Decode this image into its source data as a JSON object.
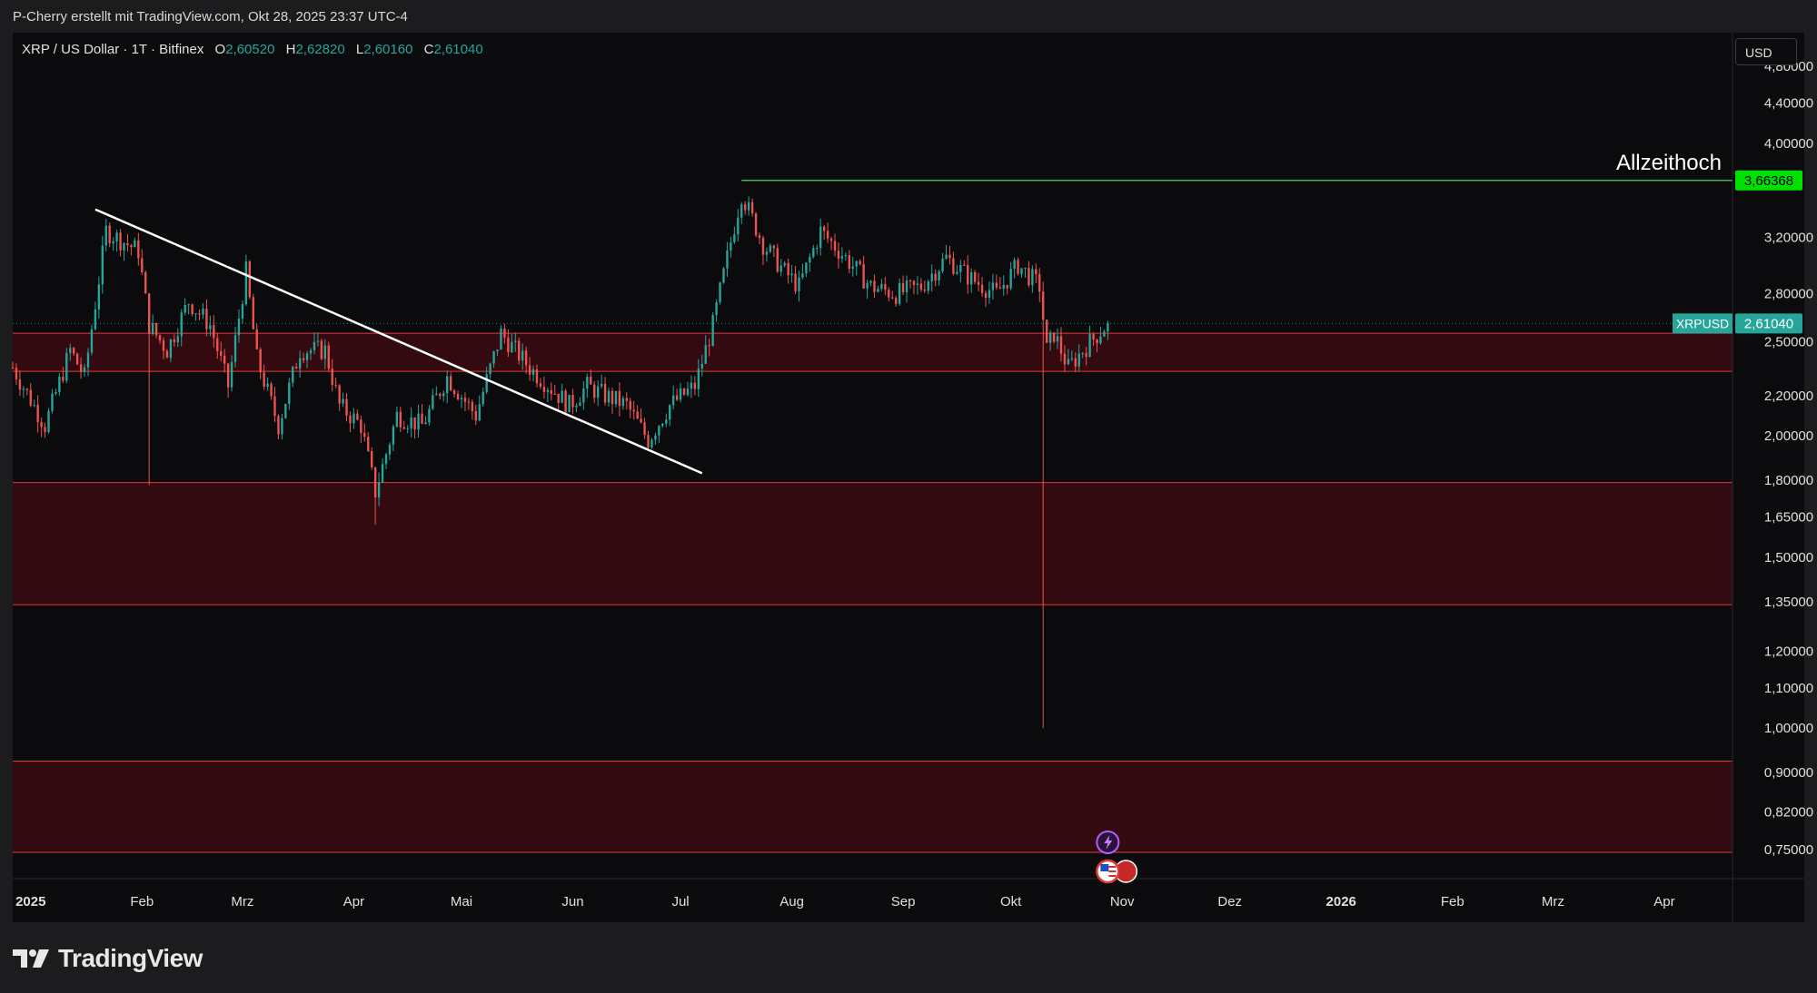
{
  "header": {
    "caption": "P-Cherry erstellt mit TradingView.com, Okt 28, 2025 23:37 UTC-4"
  },
  "legend": {
    "symbol": "XRP / US Dollar · 1T · Bitfinex",
    "o_label": "O",
    "o": "2,60520",
    "h_label": "H",
    "h": "2,62820",
    "l_label": "L",
    "l": "2,60160",
    "c_label": "C",
    "c": "2,61040"
  },
  "currency_button": "USD",
  "brand": "TradingView",
  "colors": {
    "background": "#0b0b0e",
    "up": "#26a69a",
    "down": "#ef5350",
    "zone_fill": "#3a0a10",
    "zone_border": "#e53935",
    "ath_line": "#4caf50",
    "trendline": "#ffffff"
  },
  "icon_names": [
    "lightning-event-icon",
    "us-flag-event-icon",
    "tradingview-logo-icon"
  ],
  "chart_data": {
    "type": "candlestick",
    "title": "XRP / US Dollar · 1T · Bitfinex",
    "scale": "log",
    "ylim": [
      0.7,
      5.2
    ],
    "y_ticks": [
      "4,80000",
      "4,40000",
      "4,00000",
      "3,20000",
      "2,80000",
      "2,50000",
      "2,20000",
      "2,00000",
      "1,80000",
      "1,65000",
      "1,50000",
      "1,35000",
      "1,20000",
      "1,10000",
      "1,00000",
      "0,90000",
      "0,82000",
      "0,75000"
    ],
    "y_tick_values": [
      4.8,
      4.4,
      4.0,
      3.2,
      2.8,
      2.5,
      2.2,
      2.0,
      1.8,
      1.65,
      1.5,
      1.35,
      1.2,
      1.1,
      1.0,
      0.9,
      0.82,
      0.75
    ],
    "x_ticks": [
      "2025",
      "Feb",
      "Mrz",
      "Apr",
      "Mai",
      "Jun",
      "Jul",
      "Aug",
      "Sep",
      "Okt",
      "Nov",
      "Dez",
      "2026",
      "Feb",
      "Mrz",
      "Apr"
    ],
    "x_tick_dates": [
      "2025-01-01",
      "2025-02-01",
      "2025-03-01",
      "2025-04-01",
      "2025-05-01",
      "2025-06-01",
      "2025-07-01",
      "2025-08-01",
      "2025-09-01",
      "2025-10-01",
      "2025-11-01",
      "2025-12-01",
      "2026-01-01",
      "2026-02-01",
      "2026-03-01",
      "2026-04-01"
    ],
    "x_range": [
      "2024-12-27",
      "2026-04-20"
    ],
    "anchors": [
      [
        "2024-12-27",
        2.35
      ],
      [
        "2025-01-05",
        2.05
      ],
      [
        "2025-01-12",
        2.45
      ],
      [
        "2025-01-16",
        2.3
      ],
      [
        "2025-01-22",
        3.25
      ],
      [
        "2025-01-31",
        3.1
      ],
      [
        "2025-02-03",
        2.6
      ],
      [
        "2025-02-08",
        2.45
      ],
      [
        "2025-02-14",
        2.75
      ],
      [
        "2025-02-20",
        2.6
      ],
      [
        "2025-02-25",
        2.25
      ],
      [
        "2025-03-02",
        2.95
      ],
      [
        "2025-03-05",
        2.4
      ],
      [
        "2025-03-11",
        2.05
      ],
      [
        "2025-03-17",
        2.45
      ],
      [
        "2025-03-24",
        2.45
      ],
      [
        "2025-03-28",
        2.15
      ],
      [
        "2025-04-03",
        2.05
      ],
      [
        "2025-04-07",
        1.75
      ],
      [
        "2025-04-13",
        2.1
      ],
      [
        "2025-04-20",
        2.05
      ],
      [
        "2025-04-27",
        2.3
      ],
      [
        "2025-05-05",
        2.1
      ],
      [
        "2025-05-12",
        2.55
      ],
      [
        "2025-05-20",
        2.35
      ],
      [
        "2025-05-31",
        2.15
      ],
      [
        "2025-06-05",
        2.25
      ],
      [
        "2025-06-10",
        2.2
      ],
      [
        "2025-06-16",
        2.15
      ],
      [
        "2025-06-22",
        1.98
      ],
      [
        "2025-06-28",
        2.15
      ],
      [
        "2025-07-05",
        2.25
      ],
      [
        "2025-07-10",
        2.6
      ],
      [
        "2025-07-14",
        3.05
      ],
      [
        "2025-07-18",
        3.55
      ],
      [
        "2025-07-24",
        3.15
      ],
      [
        "2025-07-30",
        2.95
      ],
      [
        "2025-08-03",
        2.85
      ],
      [
        "2025-08-09",
        3.25
      ],
      [
        "2025-08-16",
        3.05
      ],
      [
        "2025-08-23",
        2.85
      ],
      [
        "2025-08-30",
        2.8
      ],
      [
        "2025-09-06",
        2.85
      ],
      [
        "2025-09-13",
        3.05
      ],
      [
        "2025-09-20",
        2.9
      ],
      [
        "2025-09-27",
        2.8
      ],
      [
        "2025-10-03",
        3.0
      ],
      [
        "2025-10-09",
        2.85
      ],
      [
        "2025-10-11",
        2.45
      ],
      [
        "2025-10-13",
        2.55
      ],
      [
        "2025-10-17",
        2.35
      ],
      [
        "2025-10-21",
        2.45
      ],
      [
        "2025-10-28",
        2.61
      ]
    ],
    "notable_wicks": [
      {
        "date": "2025-02-03",
        "low": 1.78
      },
      {
        "date": "2025-04-07",
        "low": 1.62
      },
      {
        "date": "2025-10-10",
        "low": 1.0
      }
    ],
    "last_price": "2,61040",
    "symbol_tag": "XRPUSD",
    "all_time_high": {
      "label": "Allzeithoch",
      "value": "3,66368",
      "value_num": 3.66368,
      "from": "2025-07-18"
    },
    "trendline": {
      "from": [
        "2025-01-19",
        3.42
      ],
      "to": [
        "2025-07-07",
        1.83
      ]
    },
    "zones": [
      {
        "top": 2.55,
        "bottom": 2.33
      },
      {
        "top": 1.79,
        "bottom": 1.34
      },
      {
        "top": 0.925,
        "bottom": 0.745
      }
    ]
  }
}
